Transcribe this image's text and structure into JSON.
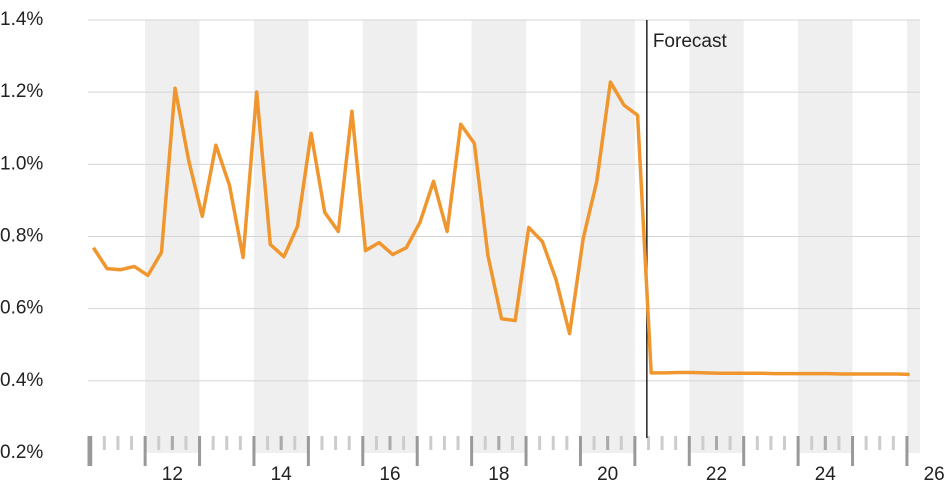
{
  "chart_data": {
    "type": "line",
    "x": [
      10.55,
      10.8,
      11.05,
      11.3,
      11.55,
      11.8,
      12.05,
      12.3,
      12.55,
      12.8,
      13.05,
      13.3,
      13.55,
      13.8,
      14.05,
      14.3,
      14.55,
      14.8,
      15.05,
      15.3,
      15.55,
      15.8,
      16.05,
      16.3,
      16.55,
      16.8,
      17.05,
      17.3,
      17.55,
      17.8,
      18.05,
      18.3,
      18.55,
      18.8,
      19.05,
      19.3,
      19.55,
      19.8,
      20.05,
      20.3,
      20.55,
      20.8,
      21.05,
      21.3,
      21.55,
      21.8,
      22.05,
      22.3,
      22.55,
      22.8,
      23.05,
      23.3,
      23.55,
      23.8,
      24.05,
      24.3,
      24.55,
      24.8,
      25.05,
      25.3,
      25.55
    ],
    "series": [
      {
        "color": "#f0962e",
        "values": [
          0.769,
          0.711,
          0.708,
          0.717,
          0.692,
          0.756,
          1.211,
          1.011,
          0.856,
          1.053,
          0.942,
          0.742,
          1.2,
          0.778,
          0.744,
          0.828,
          1.086,
          0.867,
          0.814,
          1.147,
          0.761,
          0.783,
          0.75,
          0.769,
          0.839,
          0.953,
          0.814,
          1.111,
          1.058,
          0.747,
          0.572,
          0.567,
          0.825,
          0.786,
          0.681,
          0.531,
          0.794,
          0.953,
          1.228,
          1.164,
          1.136,
          0.422,
          0.422,
          0.423,
          0.423,
          0.422,
          0.421,
          0.421,
          0.421,
          0.421,
          0.42,
          0.42,
          0.42,
          0.42,
          0.42,
          0.419,
          0.419,
          0.419,
          0.419,
          0.419,
          0.418
        ]
      }
    ],
    "xlim": [
      10.45,
      25.74
    ],
    "xticks": [
      12,
      14,
      16,
      18,
      20,
      22,
      24,
      26
    ],
    "ylim": [
      0.2,
      1.4
    ],
    "yticks": [
      {
        "value": 0.2,
        "label": "0.2%"
      },
      {
        "value": 0.4,
        "label": "0.4%"
      },
      {
        "value": 0.6,
        "label": "0.6%"
      },
      {
        "value": 0.8,
        "label": "0.8%"
      },
      {
        "value": 1.0,
        "label": "1.0%"
      },
      {
        "value": 1.2,
        "label": "1.2%"
      },
      {
        "value": 1.4,
        "label": "1.4%"
      }
    ],
    "grid": true,
    "forecast_x": 20.72,
    "forecast_label": "Forecast"
  }
}
